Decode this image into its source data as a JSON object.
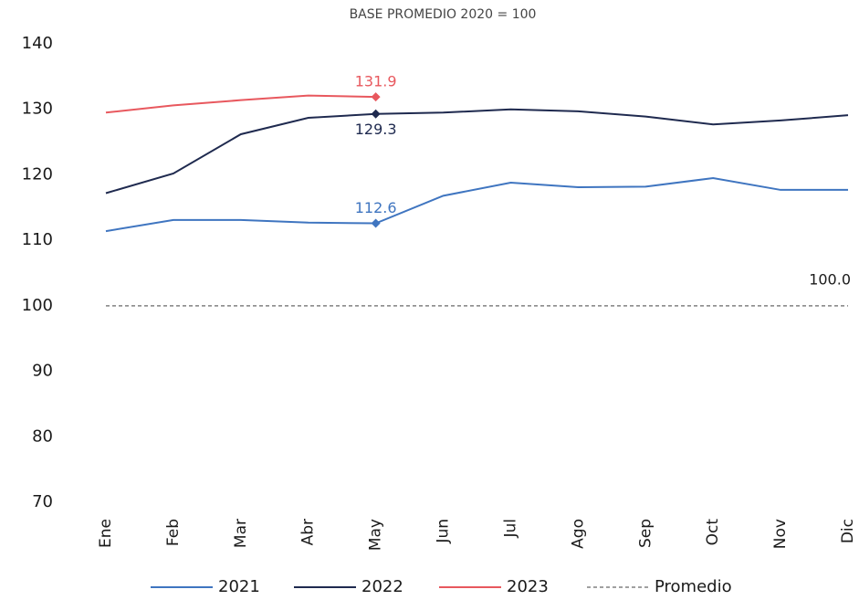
{
  "chart_data": {
    "type": "line",
    "title": "BASE PROMEDIO 2020 = 100",
    "categories": [
      "Ene",
      "Feb",
      "Mar",
      "Abr",
      "May",
      "Jun",
      "Jul",
      "Ago",
      "Sep",
      "Oct",
      "Nov",
      "Dic"
    ],
    "series": [
      {
        "name": "2021",
        "color": "#3f75c0",
        "marker": "diamond",
        "values": [
          111.4,
          113.1,
          113.1,
          112.7,
          112.6,
          116.8,
          118.8,
          118.1,
          118.2,
          119.5,
          117.7,
          117.7
        ],
        "value_labels": [
          null,
          null,
          null,
          null,
          "112.6",
          null,
          null,
          null,
          null,
          null,
          null,
          null
        ]
      },
      {
        "name": "2022",
        "color": "#1f2a4f",
        "marker": "diamond",
        "values": [
          117.2,
          120.2,
          126.2,
          128.7,
          129.3,
          129.5,
          130.0,
          129.7,
          128.9,
          127.7,
          128.3,
          129.1
        ],
        "value_labels": [
          null,
          null,
          null,
          null,
          "129.3",
          null,
          null,
          null,
          null,
          null,
          null,
          null
        ]
      },
      {
        "name": "2023",
        "color": "#e8585e",
        "marker": "diamond",
        "values": [
          129.5,
          130.6,
          131.4,
          132.1,
          131.9,
          null,
          null,
          null,
          null,
          null,
          null,
          null
        ],
        "value_labels": [
          null,
          null,
          null,
          null,
          "131.9",
          null,
          null,
          null,
          null,
          null,
          null,
          null
        ]
      },
      {
        "name": "Promedio",
        "color": "#808080",
        "dash": true,
        "values": [
          100,
          100,
          100,
          100,
          100,
          100,
          100,
          100,
          100,
          100,
          100,
          100
        ],
        "value_labels": [
          null,
          null,
          null,
          null,
          null,
          null,
          null,
          null,
          null,
          null,
          null,
          "100.0"
        ]
      }
    ],
    "ylim": [
      70,
      140
    ],
    "yticks": [
      70,
      80,
      90,
      100,
      110,
      120,
      130,
      140
    ],
    "grid": false,
    "legend": "bottom"
  }
}
